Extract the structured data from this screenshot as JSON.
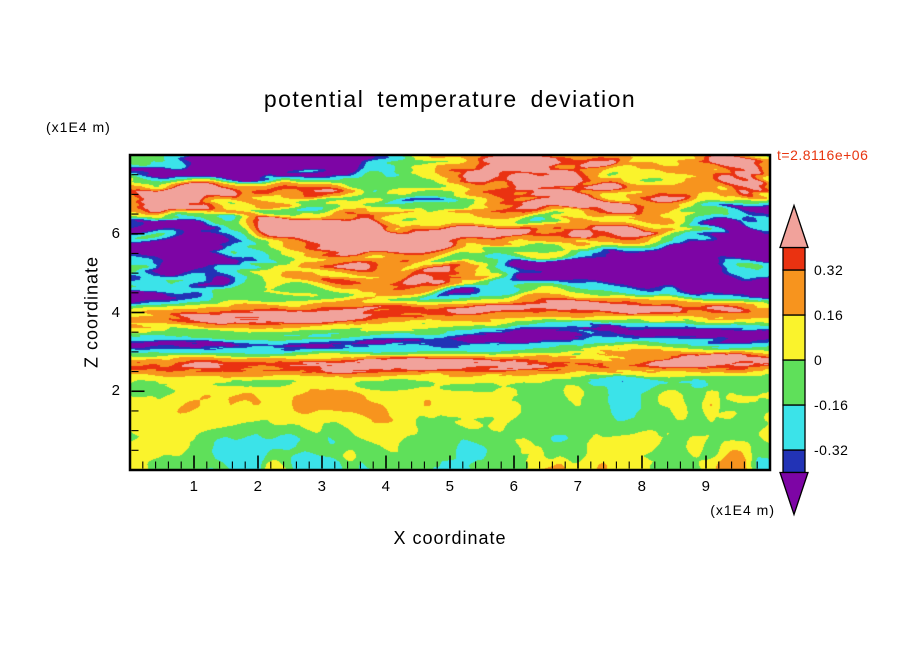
{
  "chart_data": {
    "type": "heatmap",
    "title": "potential temperature deviation",
    "xlabel": "X coordinate",
    "ylabel": "Z coordinate",
    "x_unit": "(x1E4 m)",
    "y_unit": "(x1E4 m)",
    "time_label": "t=2.8116e+06",
    "time_label_color": "#e8350f",
    "x_range": [
      0,
      10
    ],
    "y_range": [
      0,
      8
    ],
    "x_ticks": [
      1,
      2,
      3,
      4,
      5,
      6,
      7,
      8,
      9
    ],
    "y_ticks": [
      2,
      4,
      6
    ],
    "x_minor_step": 0.2,
    "y_minor_step": 0.5,
    "grid": false,
    "legend_position": "right-colorbar",
    "colorbar": {
      "tick_labels": [
        "0.32",
        "0.16",
        "0",
        "-0.16",
        "-0.32"
      ],
      "level_edges": [
        -0.4,
        -0.32,
        -0.16,
        0,
        0.16,
        0.32,
        0.4
      ],
      "colors_low_to_high": [
        "#7d05a5",
        "#2233b6",
        "#3be3e9",
        "#5fe05a",
        "#faf32c",
        "#f7941e",
        "#ea3211",
        "#f1a29b"
      ],
      "color_names_low_to_high": [
        "purple",
        "dark-blue",
        "cyan",
        "green",
        "yellow",
        "orange",
        "red",
        "pink"
      ],
      "out_of_range_arrows": "both"
    },
    "field_summary": "Filled contour map of potential temperature deviation in an x-z plane: blobby green/cyan convective structures with yellow-orange plumes and dark-blue pools below z~2x1E4 m; thin multicolored horizontal streaks between z~2.5 and 4.5 with a strong warm (red/orange) band near z~4 and a cool (cyan/blue) band near z~3.3; large-amplitude salmon-pink and purple wave layers above z~4.5."
  }
}
